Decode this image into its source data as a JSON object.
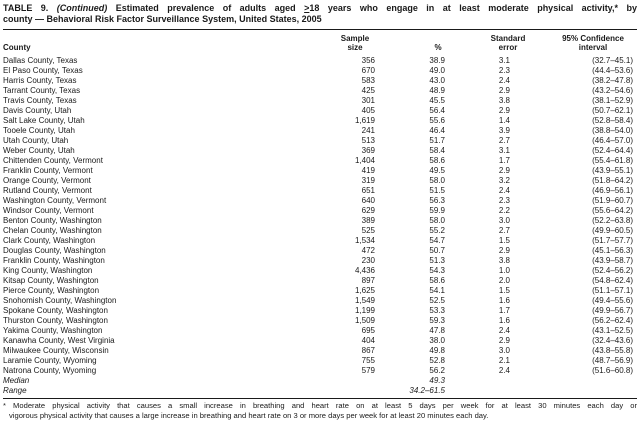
{
  "title": {
    "t1": "TABLE 9. ",
    "t2": "(Continued)",
    "t3": " Estimated prevalence of adults aged ",
    "gte": ">",
    "t4": "18 years who engage in at least moderate physical activity,* by",
    "line2": "county — Behavioral Risk Factor Surveillance System, United States, 2005"
  },
  "table": {
    "columns": {
      "county": "County",
      "sample": "Sample\nsize",
      "pct": "%",
      "se": "Standard\nerror",
      "ci": "95% Confidence\ninterval"
    },
    "rows": [
      {
        "county": "Dallas County, Texas",
        "sample": "356",
        "pct": "38.9",
        "se": "3.1",
        "ci": "(32.7–45.1)"
      },
      {
        "county": "El Paso County, Texas",
        "sample": "670",
        "pct": "49.0",
        "se": "2.3",
        "ci": "(44.4–53.6)"
      },
      {
        "county": "Harris County, Texas",
        "sample": "583",
        "pct": "43.0",
        "se": "2.4",
        "ci": "(38.2–47.8)"
      },
      {
        "county": "Tarrant County, Texas",
        "sample": "425",
        "pct": "48.9",
        "se": "2.9",
        "ci": "(43.2–54.6)"
      },
      {
        "county": "Travis County, Texas",
        "sample": "301",
        "pct": "45.5",
        "se": "3.8",
        "ci": "(38.1–52.9)"
      },
      {
        "county": "Davis County, Utah",
        "sample": "405",
        "pct": "56.4",
        "se": "2.9",
        "ci": "(50.7–62.1)"
      },
      {
        "county": "Salt Lake County, Utah",
        "sample": "1,619",
        "pct": "55.6",
        "se": "1.4",
        "ci": "(52.8–58.4)"
      },
      {
        "county": "Tooele County, Utah",
        "sample": "241",
        "pct": "46.4",
        "se": "3.9",
        "ci": "(38.8–54.0)"
      },
      {
        "county": "Utah County, Utah",
        "sample": "513",
        "pct": "51.7",
        "se": "2.7",
        "ci": "(46.4–57.0)"
      },
      {
        "county": "Weber County, Utah",
        "sample": "369",
        "pct": "58.4",
        "se": "3.1",
        "ci": "(52.4–64.4)"
      },
      {
        "county": "Chittenden County, Vermont",
        "sample": "1,404",
        "pct": "58.6",
        "se": "1.7",
        "ci": "(55.4–61.8)"
      },
      {
        "county": "Franklin County, Vermont",
        "sample": "419",
        "pct": "49.5",
        "se": "2.9",
        "ci": "(43.9–55.1)"
      },
      {
        "county": "Orange County, Vermont",
        "sample": "319",
        "pct": "58.0",
        "se": "3.2",
        "ci": "(51.8–64.2)"
      },
      {
        "county": "Rutland County, Vermont",
        "sample": "651",
        "pct": "51.5",
        "se": "2.4",
        "ci": "(46.9–56.1)"
      },
      {
        "county": "Washington County, Vermont",
        "sample": "640",
        "pct": "56.3",
        "se": "2.3",
        "ci": "(51.9–60.7)"
      },
      {
        "county": "Windsor County, Vermont",
        "sample": "629",
        "pct": "59.9",
        "se": "2.2",
        "ci": "(55.6–64.2)"
      },
      {
        "county": "Benton County, Washington",
        "sample": "389",
        "pct": "58.0",
        "se": "3.0",
        "ci": "(52.2–63.8)"
      },
      {
        "county": "Chelan County, Washington",
        "sample": "525",
        "pct": "55.2",
        "se": "2.7",
        "ci": "(49.9–60.5)"
      },
      {
        "county": "Clark County, Washington",
        "sample": "1,534",
        "pct": "54.7",
        "se": "1.5",
        "ci": "(51.7–57.7)"
      },
      {
        "county": "Douglas County, Washington",
        "sample": "472",
        "pct": "50.7",
        "se": "2.9",
        "ci": "(45.1–56.3)"
      },
      {
        "county": "Franklin County, Washington",
        "sample": "230",
        "pct": "51.3",
        "se": "3.8",
        "ci": "(43.9–58.7)"
      },
      {
        "county": "King County, Washington",
        "sample": "4,436",
        "pct": "54.3",
        "se": "1.0",
        "ci": "(52.4–56.2)"
      },
      {
        "county": "Kitsap County, Washington",
        "sample": "897",
        "pct": "58.6",
        "se": "2.0",
        "ci": "(54.8–62.4)"
      },
      {
        "county": "Pierce County, Washington",
        "sample": "1,625",
        "pct": "54.1",
        "se": "1.5",
        "ci": "(51.1–57.1)"
      },
      {
        "county": "Snohomish County, Washington",
        "sample": "1,549",
        "pct": "52.5",
        "se": "1.6",
        "ci": "(49.4–55.6)"
      },
      {
        "county": "Spokane County, Washington",
        "sample": "1,199",
        "pct": "53.3",
        "se": "1.7",
        "ci": "(49.9–56.7)"
      },
      {
        "county": "Thurston County, Washington",
        "sample": "1,509",
        "pct": "59.3",
        "se": "1.6",
        "ci": "(56.2–62.4)"
      },
      {
        "county": "Yakima County, Washington",
        "sample": "695",
        "pct": "47.8",
        "se": "2.4",
        "ci": "(43.1–52.5)"
      },
      {
        "county": "Kanawha County, West Virginia",
        "sample": "404",
        "pct": "38.0",
        "se": "2.9",
        "ci": "(32.4–43.6)"
      },
      {
        "county": "Milwaukee County, Wisconsin",
        "sample": "867",
        "pct": "49.8",
        "se": "3.0",
        "ci": "(43.8–55.8)"
      },
      {
        "county": "Laramie County, Wyoming",
        "sample": "755",
        "pct": "52.8",
        "se": "2.1",
        "ci": "(48.7–56.9)"
      },
      {
        "county": "Natrona County, Wyoming",
        "sample": "579",
        "pct": "56.2",
        "se": "2.4",
        "ci": "(51.6–60.8)"
      }
    ],
    "summary": {
      "median_label": "Median",
      "median_value": "49.3",
      "range_label": "Range",
      "range_value": "34.2–61.5"
    }
  },
  "footnote": {
    "line1": "* Moderate physical activity that causes a small increase in breathing and heart rate on at least 5 days per week for at least 30 minutes each day or",
    "line2": "vigorous physical activity that causes a large increase in breathing and heart rate on 3 or more days per week for at least 20 minutes each day."
  }
}
